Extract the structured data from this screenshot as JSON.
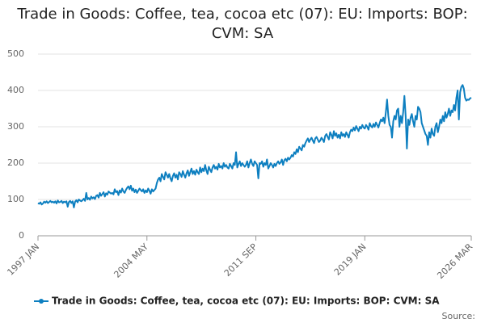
{
  "chart_data": {
    "type": "line",
    "title": "Trade in Goods: Coffee, tea, cocoa etc (07): EU: Imports: BOP: CVM: SA",
    "source": "Source:",
    "categories": [
      "1997 JAN",
      null,
      null,
      null,
      null,
      null,
      null,
      null,
      null,
      null,
      null,
      null,
      null,
      null,
      null,
      null,
      null,
      null,
      null,
      null,
      null,
      null,
      null,
      null,
      null,
      null,
      null,
      null,
      null,
      null,
      null,
      null,
      null,
      null,
      null,
      null,
      null,
      null,
      null,
      null,
      null,
      null,
      null,
      null,
      null,
      null,
      null,
      null,
      null,
      null,
      null,
      null,
      null,
      null,
      null,
      null,
      null,
      null,
      null,
      null,
      null,
      null,
      null,
      null,
      null,
      null,
      null,
      null,
      null,
      null,
      null,
      null,
      null,
      null,
      null,
      null,
      null,
      null,
      null,
      null,
      null,
      null,
      null,
      null,
      null,
      null,
      null,
      null,
      "2004 MAY",
      null,
      null,
      null,
      null,
      null,
      null,
      null,
      null,
      null,
      null,
      null,
      null,
      null,
      null,
      null,
      null,
      null,
      null,
      null,
      null,
      null,
      null,
      null,
      null,
      null,
      null,
      null,
      null,
      null,
      null,
      null,
      null,
      null,
      null,
      null,
      null,
      null,
      null,
      null,
      null,
      null,
      null,
      null,
      null,
      null,
      null,
      null,
      null,
      null,
      null,
      null,
      null,
      null,
      null,
      null,
      null,
      null,
      null,
      null,
      null,
      null,
      null,
      null,
      null,
      null,
      null,
      null,
      null,
      null,
      null,
      null,
      null,
      null,
      null,
      null,
      null,
      null,
      null,
      null,
      null,
      null,
      null,
      null,
      null,
      null,
      null,
      null,
      "2011 SEP",
      null,
      null,
      null,
      null,
      null,
      null,
      null,
      null,
      null,
      null,
      null,
      null,
      null,
      null,
      null,
      null,
      null,
      null,
      null,
      null,
      null,
      null,
      null,
      null,
      null,
      null,
      null,
      null,
      null,
      null,
      null,
      null,
      null,
      null,
      null,
      null,
      null,
      null,
      null,
      null,
      null,
      null,
      null,
      null,
      null,
      null,
      null,
      null,
      null,
      null,
      null,
      null,
      null,
      null,
      null,
      null,
      null,
      null,
      null,
      null,
      null,
      null,
      null,
      null,
      null,
      null,
      null,
      null,
      null,
      null,
      null,
      null,
      null,
      null,
      null,
      null,
      null,
      null,
      null,
      null,
      null,
      null,
      null,
      null,
      null,
      null,
      null,
      "2019 JAN",
      null,
      null,
      null,
      null,
      null,
      null,
      null,
      null,
      null,
      null,
      null,
      null,
      null,
      null,
      null,
      null,
      null,
      null,
      null,
      null,
      null,
      null,
      null,
      null,
      null,
      null,
      null,
      null,
      null,
      null,
      null,
      null,
      null,
      null,
      null,
      null,
      null,
      null,
      null,
      null,
      null,
      null,
      null,
      null,
      null,
      null,
      null,
      null,
      null,
      null,
      null,
      null,
      null,
      null,
      null,
      null,
      null,
      null,
      null,
      null,
      null,
      null,
      null,
      null,
      null,
      null,
      null,
      null,
      null,
      null,
      null,
      null,
      null,
      null,
      null,
      null,
      null,
      null,
      null,
      null,
      null,
      null,
      null,
      null,
      null,
      "2026 MAR"
    ],
    "series": [
      {
        "name": "Trade in Goods: Coffee, tea, cocoa etc (07): EU: Imports: BOP: CVM: SA",
        "color": "#0d7fc0",
        "values": [
          90,
          88,
          92,
          86,
          89,
          94,
          91,
          95,
          90,
          93,
          96,
          92,
          94,
          91,
          95,
          89,
          97,
          92,
          93,
          96,
          90,
          94,
          92,
          95,
          80,
          93,
          96,
          90,
          95,
          78,
          94,
          98,
          92,
          100,
          97,
          95,
          98,
          102,
          96,
          118,
          100,
          104,
          99,
          108,
          103,
          106,
          101,
          110,
          112,
          105,
          118,
          110,
          115,
          120,
          108,
          117,
          113,
          122,
          119,
          116,
          118,
          114,
          128,
          120,
          123,
          112,
          125,
          119,
          130,
          122,
          118,
          126,
          132,
          136,
          128,
          138,
          124,
          130,
          120,
          127,
          118,
          124,
          130,
          126,
          122,
          128,
          118,
          125,
          120,
          130,
          124,
          116,
          128,
          122,
          126,
          130,
          145,
          155,
          160,
          150,
          170,
          162,
          155,
          175,
          168,
          160,
          170,
          158,
          150,
          165,
          172,
          160,
          168,
          155,
          175,
          170,
          162,
          178,
          168,
          160,
          172,
          180,
          165,
          175,
          185,
          170,
          178,
          168,
          182,
          175,
          170,
          188,
          175,
          185,
          178,
          195,
          180,
          170,
          190,
          182,
          175,
          188,
          195,
          185,
          190,
          182,
          198,
          188,
          192,
          185,
          200,
          190,
          195,
          188,
          185,
          198,
          192,
          185,
          200,
          195,
          230,
          188,
          198,
          205,
          192,
          200,
          195,
          190,
          195,
          205,
          188,
          200,
          210,
          198,
          192,
          205,
          200,
          195,
          158,
          200,
          198,
          205,
          190,
          200,
          195,
          210,
          185,
          192,
          200,
          195,
          188,
          198,
          192,
          200,
          205,
          198,
          202,
          210,
          195,
          208,
          212,
          205,
          215,
          210,
          215,
          222,
          218,
          230,
          225,
          238,
          230,
          245,
          240,
          235,
          250,
          245,
          255,
          262,
          268,
          258,
          265,
          270,
          262,
          255,
          268,
          272,
          265,
          258,
          262,
          270,
          265,
          258,
          275,
          280,
          272,
          265,
          285,
          278,
          268,
          288,
          275,
          282,
          270,
          278,
          268,
          285,
          275,
          280,
          272,
          285,
          278,
          270,
          285,
          292,
          288,
          298,
          290,
          302,
          295,
          288,
          300,
          295,
          305,
          298,
          295,
          305,
          300,
          292,
          310,
          302,
          298,
          308,
          300,
          312,
          305,
          298,
          310,
          320,
          315,
          325,
          310,
          340,
          375,
          330,
          305,
          300,
          270,
          315,
          330,
          320,
          345,
          350,
          300,
          330,
          310,
          340,
          385,
          330,
          240,
          320,
          305,
          325,
          335,
          315,
          300,
          330,
          320,
          355,
          350,
          340,
          310,
          300,
          290,
          280,
          275,
          250,
          285,
          270,
          295,
          280,
          275,
          300,
          310,
          285,
          300,
          320,
          310,
          330,
          315,
          340,
          325,
          335,
          350,
          330,
          345,
          340,
          360,
          345,
          380,
          400,
          320,
          395,
          410,
          415,
          405,
          380,
          372,
          375,
          374,
          378,
          380
        ]
      }
    ],
    "ylim": [
      0,
      500
    ],
    "yticks": [
      0,
      100,
      200,
      300,
      400,
      500
    ],
    "grid": true
  }
}
